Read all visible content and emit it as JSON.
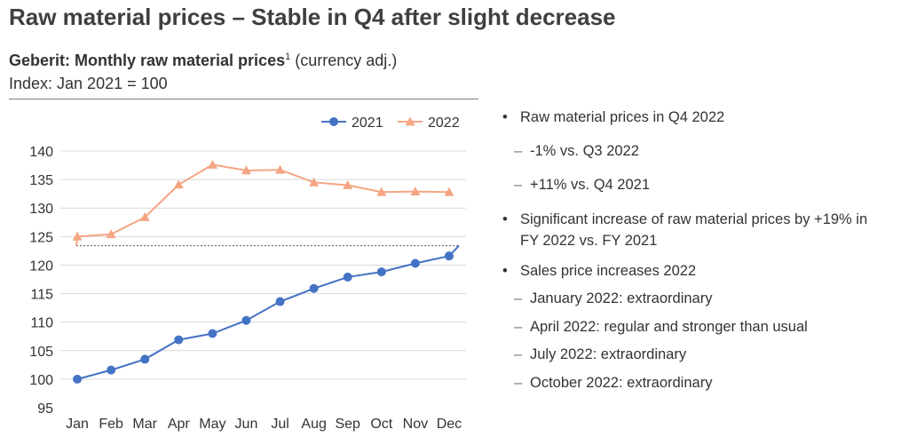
{
  "title": "Raw material prices – Stable in Q4 after slight decrease",
  "subtitle": {
    "bold": "Geberit: Monthly raw material prices",
    "footnote": "1",
    "rest": " (currency adj.)",
    "index": "Index: Jan 2021 = 100"
  },
  "bullets": [
    {
      "text": "Raw material prices in Q4 2022",
      "top": 0,
      "subs": [
        {
          "text": "-1% vs. Q3 2022",
          "top": 39
        },
        {
          "text": "+11% vs. Q4 2021",
          "top": 77
        }
      ]
    },
    {
      "text": "Significant increase of raw material prices by +19% in",
      "text2": "FY 2022 vs. FY 2021",
      "top": 115,
      "subs": []
    },
    {
      "text": "Sales price increases 2022",
      "top": 173,
      "subs": [
        {
          "text": "January 2022: extraordinary",
          "top": 205
        },
        {
          "text": "April 2022: regular and stronger than usual",
          "top": 237
        },
        {
          "text": "July 2022: extraordinary",
          "top": 268
        },
        {
          "text": "October 2022: extraordinary",
          "top": 300
        }
      ]
    }
  ],
  "colors": {
    "series2021": "#4472c4",
    "series2022": "#f4a582",
    "text": "#333333",
    "grid": "#d9d9d9"
  },
  "chart_data": {
    "type": "line",
    "categories": [
      "Jan",
      "Feb",
      "Mar",
      "Apr",
      "May",
      "Jun",
      "Jul",
      "Aug",
      "Sep",
      "Oct",
      "Nov",
      "Dec"
    ],
    "ylim": [
      95,
      140
    ],
    "yticks": [
      95,
      100,
      105,
      110,
      115,
      120,
      125,
      130,
      135,
      140
    ],
    "legend_position": "top-right",
    "series": [
      {
        "name": "2021",
        "marker": "circle",
        "color": "#4472c4",
        "values": [
          100.0,
          101.6,
          103.5,
          106.9,
          108.0,
          110.3,
          113.6,
          115.9,
          117.9,
          118.8,
          120.3,
          121.6
        ],
        "extension_end": 123.4
      },
      {
        "name": "2022",
        "marker": "triangle",
        "color": "#f4a582",
        "values": [
          125.0,
          125.4,
          128.4,
          134.1,
          137.6,
          136.6,
          136.7,
          134.5,
          134.0,
          132.8,
          132.9,
          132.8
        ],
        "extension_start": 123.4
      }
    ],
    "reference_line": 123.4
  }
}
